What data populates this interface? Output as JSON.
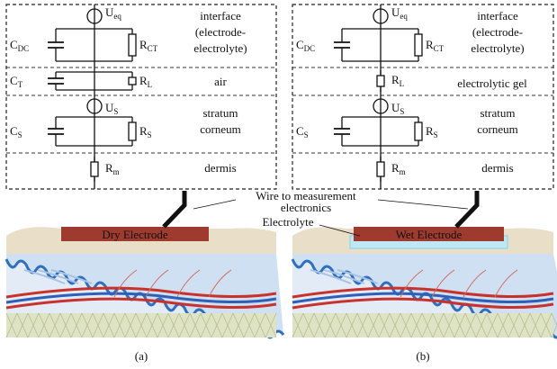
{
  "panels": [
    {
      "components": {
        "u_eq": {
          "symbol": "U",
          "sub": "eq"
        },
        "c_dc": {
          "symbol": "C",
          "sub": "DC"
        },
        "r_ct": {
          "symbol": "R",
          "sub": "CT"
        },
        "c_t": {
          "symbol": "C",
          "sub": "T"
        },
        "r_l": {
          "symbol": "R",
          "sub": "L"
        },
        "u_s": {
          "symbol": "U",
          "sub": "S"
        },
        "c_s": {
          "symbol": "C",
          "sub": "S"
        },
        "r_s": {
          "symbol": "R",
          "sub": "S"
        },
        "r_m": {
          "symbol": "R",
          "sub": "m"
        }
      },
      "interface": [
        "interface",
        "(electrode-",
        "electrolyte)"
      ],
      "middle_layer": [
        "air"
      ],
      "stratum": [
        "stratum",
        "corneum"
      ],
      "dermis": [
        "dermis"
      ],
      "electrode": "Dry Electrode",
      "caption": "(a)"
    },
    {
      "components": {
        "u_eq": {
          "symbol": "U",
          "sub": "eq"
        },
        "c_dc": {
          "symbol": "C",
          "sub": "DC"
        },
        "r_ct": {
          "symbol": "R",
          "sub": "CT"
        },
        "r_l": {
          "symbol": "R",
          "sub": "L"
        },
        "u_s": {
          "symbol": "U",
          "sub": "S"
        },
        "c_s": {
          "symbol": "C",
          "sub": "S"
        },
        "r_s": {
          "symbol": "R",
          "sub": "S"
        },
        "r_m": {
          "symbol": "R",
          "sub": "m"
        }
      },
      "interface": [
        "interface",
        "(electrode-",
        "electrolyte)"
      ],
      "middle_layer": [
        "electrolytic gel"
      ],
      "stratum": [
        "stratum",
        "corneum"
      ],
      "dermis": [
        "dermis"
      ],
      "electrode": "Wet Electrode",
      "caption": "(b)"
    }
  ],
  "annotations": {
    "wire": [
      "Wire to measurement",
      "electronics"
    ],
    "electrolyte": "Electrolyte"
  }
}
